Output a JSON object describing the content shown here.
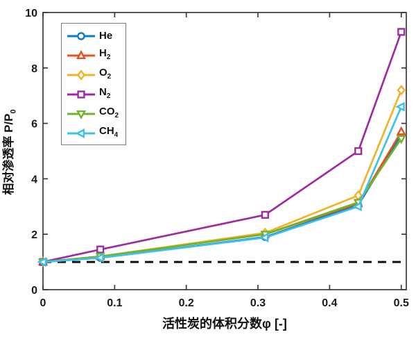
{
  "figure": {
    "background": "#ffffff",
    "axis_color": "#3a3a3a",
    "tick_text_color": "#1a1a1a",
    "ylabel_main": "相对渗透率 P/P",
    "ylabel_sub": "0",
    "xlabel_text": "活性炭的体积分数φ [-]"
  },
  "chart_data": {
    "type": "line",
    "title": "",
    "xlabel": "活性炭的体积分数φ [-]",
    "ylabel": "相对渗透率 P/P0",
    "x": [
      0,
      0.08,
      0.31,
      0.44,
      0.5
    ],
    "series": [
      {
        "name": "He",
        "label_main": "He",
        "label_sub": "",
        "color": "#0d7cc4",
        "marker": "circle",
        "values": [
          1.0,
          1.15,
          1.9,
          3.05,
          5.6
        ]
      },
      {
        "name": "H2",
        "label_main": "H",
        "label_sub": "2",
        "color": "#e5521c",
        "marker": "triangle-up",
        "values": [
          1.0,
          1.2,
          2.0,
          3.1,
          5.7
        ]
      },
      {
        "name": "O2",
        "label_main": "O",
        "label_sub": "2",
        "color": "#f0b228",
        "marker": "diamond",
        "values": [
          1.0,
          1.2,
          2.05,
          3.4,
          7.2
        ]
      },
      {
        "name": "N2",
        "label_main": "N",
        "label_sub": "2",
        "color": "#a02ba0",
        "marker": "square",
        "values": [
          1.0,
          1.45,
          2.7,
          5.0,
          9.3
        ]
      },
      {
        "name": "CO2",
        "label_main": "CO",
        "label_sub": "2",
        "color": "#6fb42c",
        "marker": "triangle-down",
        "values": [
          1.0,
          1.2,
          2.0,
          3.15,
          5.45
        ]
      },
      {
        "name": "CH4",
        "label_main": "CH",
        "label_sub": "4",
        "color": "#3cc1ea",
        "marker": "triangle-left",
        "values": [
          1.0,
          1.15,
          1.88,
          3.0,
          6.6
        ]
      }
    ],
    "reference_line": {
      "y": 1,
      "style": "dashed",
      "color": "#111111",
      "width": 3
    },
    "xlim": [
      0,
      0.507
    ],
    "ylim": [
      0,
      10
    ],
    "x_ticks": [
      0,
      0.1,
      0.2,
      0.3,
      0.4,
      0.5
    ],
    "x_tick_labels": [
      "0",
      "0.1",
      "0.2",
      "0.3",
      "0.4",
      "0.5"
    ],
    "y_ticks": [
      0,
      2,
      4,
      6,
      8,
      10
    ],
    "y_tick_labels": [
      "0",
      "2",
      "4",
      "6",
      "8",
      "10"
    ],
    "grid": false,
    "legend_position": "upper-left",
    "box": true
  }
}
